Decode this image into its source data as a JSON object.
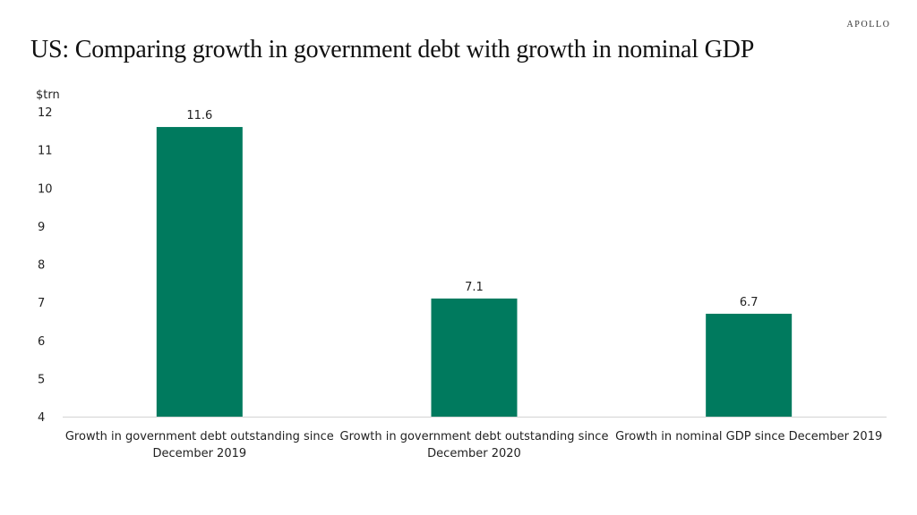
{
  "brand": "APOLLO",
  "chart_data": {
    "type": "bar",
    "title": "US: Comparing growth in government debt with growth in nominal GDP",
    "ylabel": "$trn",
    "xlabel": "",
    "ylim": [
      4,
      12
    ],
    "yticks": [
      4,
      5,
      6,
      7,
      8,
      9,
      10,
      11,
      12
    ],
    "grid": false,
    "categories": [
      [
        "Growth in government debt outstanding since",
        "December 2019"
      ],
      [
        "Growth in government debt outstanding since",
        "December 2020"
      ],
      [
        "Growth in nominal GDP since December 2019"
      ]
    ],
    "values": [
      11.6,
      7.1,
      6.7
    ],
    "data_labels": [
      "11.6",
      "7.1",
      "6.7"
    ],
    "bar_color": "#007A5E",
    "axis_color": "#d9d9d9"
  }
}
